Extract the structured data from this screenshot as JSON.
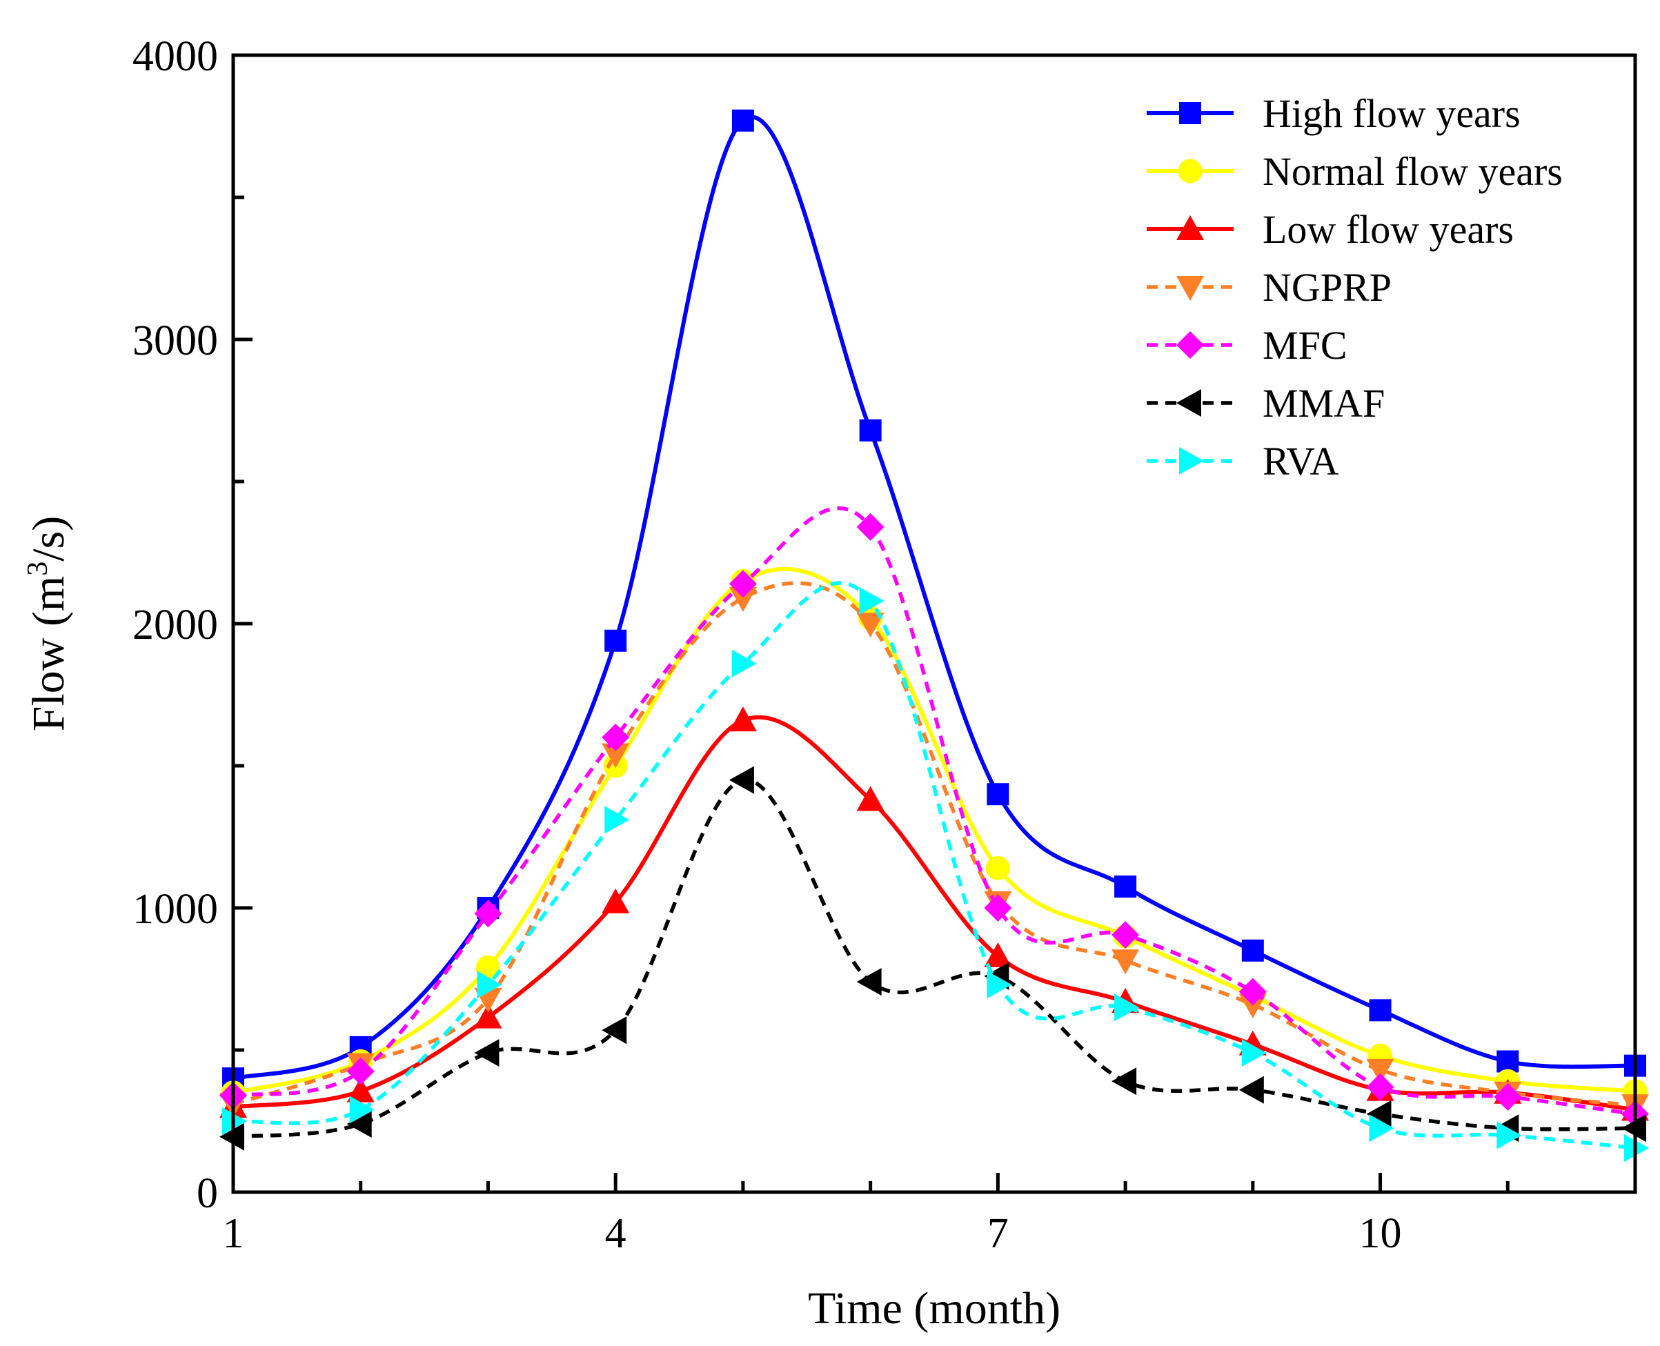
{
  "chart_data": {
    "type": "line",
    "xlabel": "Time (month)",
    "ylabel": "Flow (m³/s)",
    "ylabel_parts": {
      "pre": "Flow (m",
      "sup": "3",
      "post": "/s)"
    },
    "xlim": [
      1,
      12
    ],
    "ylim": [
      0,
      4000
    ],
    "xticks": [
      1,
      4,
      7,
      10
    ],
    "xtick_labels": [
      "1",
      "4",
      "7",
      "10"
    ],
    "yticks": [
      0,
      1000,
      2000,
      3000,
      4000
    ],
    "ytick_labels": [
      "0",
      "1000",
      "2000",
      "3000",
      "4000"
    ],
    "x": [
      1,
      2,
      3,
      4,
      5,
      6,
      7,
      8,
      9,
      10,
      11,
      12
    ],
    "legend_position": "top-right",
    "series": [
      {
        "name": "High flow years",
        "color": "#0000FF",
        "dash": "solid",
        "marker": "square",
        "values": [
          400,
          510,
          1000,
          1940,
          3770,
          2680,
          1400,
          1075,
          850,
          640,
          460,
          445
        ]
      },
      {
        "name": "Normal flow years",
        "color": "#FFFF00",
        "dash": "solid",
        "marker": "circle",
        "values": [
          350,
          460,
          790,
          1500,
          2150,
          2020,
          1140,
          900,
          690,
          480,
          390,
          355
        ]
      },
      {
        "name": "Low flow years",
        "color": "#FF0000",
        "dash": "solid",
        "marker": "triangle-up",
        "values": [
          300,
          355,
          615,
          1020,
          1660,
          1380,
          830,
          670,
          520,
          360,
          350,
          290
        ]
      },
      {
        "name": "NGPRP",
        "color": "#FF7F27",
        "dash": "dashed",
        "marker": "triangle-down",
        "values": [
          310,
          450,
          680,
          1540,
          2090,
          2000,
          1020,
          815,
          660,
          430,
          350,
          305
        ]
      },
      {
        "name": "MFC",
        "color": "#FF00FF",
        "dash": "dashed",
        "marker": "diamond",
        "values": [
          340,
          425,
          980,
          1600,
          2140,
          2340,
          1000,
          905,
          705,
          370,
          335,
          275
        ]
      },
      {
        "name": "MMAF",
        "color": "#000000",
        "dash": "dashed",
        "marker": "triangle-left",
        "values": [
          195,
          240,
          490,
          570,
          1450,
          740,
          760,
          390,
          360,
          275,
          225,
          225
        ]
      },
      {
        "name": "RVA",
        "color": "#00FFFF",
        "dash": "dashed",
        "marker": "triangle-right",
        "values": [
          250,
          290,
          730,
          1310,
          1860,
          2080,
          730,
          650,
          490,
          225,
          200,
          155
        ]
      }
    ]
  }
}
